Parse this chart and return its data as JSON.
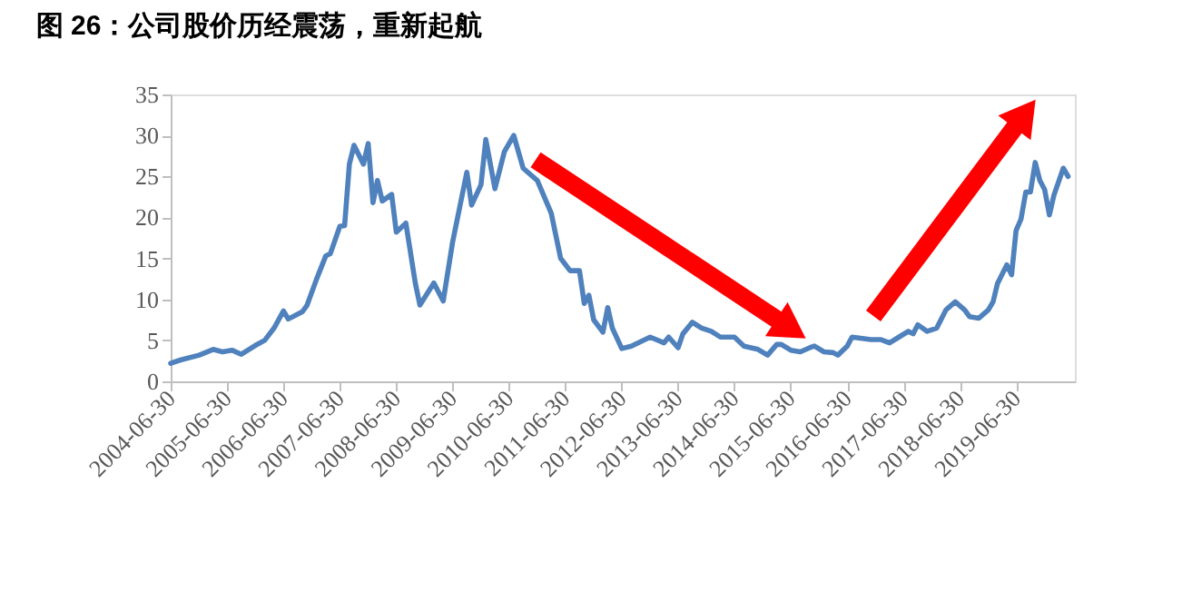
{
  "chart_data": {
    "type": "line",
    "title": "图 26：公司股价历经震荡，重新起航",
    "x": [
      "2004-06-30",
      "2004-09",
      "2005-01",
      "2005-04",
      "2005-06",
      "2005-08",
      "2005-10",
      "2006-01",
      "2006-03",
      "2006-05",
      "2006-07",
      "2006-08",
      "2006-11",
      "2006-12",
      "2007-02",
      "2007-04",
      "2007-05",
      "2007-07",
      "2007-08",
      "2007-09",
      "2007-10",
      "2007-12",
      "2008-01",
      "2008-02",
      "2008-03",
      "2008-04",
      "2008-06",
      "2008-07",
      "2008-09",
      "2008-11",
      "2008-12",
      "2009-03",
      "2009-05",
      "2009-07",
      "2009-10",
      "2009-11",
      "2010-01",
      "2010-02",
      "2010-04",
      "2010-06",
      "2010-08",
      "2010-10",
      "2011-01",
      "2011-04",
      "2011-06",
      "2011-08",
      "2011-10",
      "2011-11",
      "2011-12",
      "2012-01",
      "2012-03",
      "2012-04",
      "2012-05",
      "2012-07",
      "2012-09",
      "2013-01",
      "2013-04",
      "2013-05",
      "2013-07",
      "2013-08",
      "2013-10",
      "2013-12",
      "2014-02",
      "2014-04",
      "2014-07",
      "2014-09",
      "2014-12",
      "2015-02",
      "2015-04",
      "2015-05",
      "2015-07",
      "2015-09",
      "2015-11",
      "2015-12",
      "2016-02",
      "2016-04",
      "2016-05",
      "2016-07",
      "2016-08",
      "2016-12",
      "2017-02",
      "2017-04",
      "2017-06",
      "2017-08",
      "2017-09",
      "2017-10",
      "2017-12",
      "2018-02",
      "2018-04",
      "2018-06",
      "2018-08",
      "2018-09",
      "2018-11",
      "2019-01",
      "2019-02",
      "2019-03",
      "2019-05",
      "2019-06-01",
      "2019-06-30",
      "2019-08",
      "2019-09",
      "2019-10",
      "2019-11",
      "2019-12",
      "2020-01",
      "2020-02",
      "2020-03",
      "2020-05",
      "2020-06"
    ],
    "series": [
      {
        "color": "#4f81bd",
        "values": [
          2.2,
          2.6,
          3.2,
          3.9,
          3.6,
          3.8,
          3.3,
          4.4,
          5.0,
          6.5,
          8.6,
          7.6,
          8.5,
          9.3,
          12.5,
          15.3,
          15.6,
          18.9,
          19.0,
          26.5,
          28.8,
          26.5,
          29.0,
          21.8,
          24.5,
          22.0,
          22.8,
          18.2,
          19.3,
          12.0,
          9.3,
          12.0,
          9.8,
          17.0,
          25.5,
          21.5,
          24.0,
          29.5,
          23.5,
          28.0,
          30.0,
          26.0,
          24.5,
          20.5,
          15.0,
          13.5,
          13.5,
          9.5,
          10.5,
          7.5,
          6.0,
          9.0,
          6.5,
          4.0,
          4.3,
          5.4,
          4.7,
          5.4,
          4.1,
          5.8,
          7.2,
          6.5,
          6.1,
          5.4,
          5.4,
          4.3,
          3.9,
          3.2,
          4.5,
          4.5,
          3.8,
          3.6,
          4.1,
          4.3,
          3.6,
          3.5,
          3.2,
          4.3,
          5.4,
          5.1,
          5.1,
          4.7,
          5.4,
          6.1,
          5.8,
          6.9,
          6.1,
          6.5,
          8.7,
          9.7,
          8.7,
          7.9,
          7.7,
          8.7,
          9.7,
          11.9,
          14.2,
          13.0,
          18.4,
          19.8,
          23.1,
          23.1,
          26.7,
          24.5,
          23.4,
          20.3,
          22.7,
          26.0,
          25.0
        ]
      }
    ],
    "xlim": [
      "2004-06-30",
      "2020-07-15"
    ],
    "xticks": [
      "2004-06-30",
      "2005-06-30",
      "2006-06-30",
      "2007-06-30",
      "2008-06-30",
      "2009-06-30",
      "2010-06-30",
      "2011-06-30",
      "2012-06-30",
      "2013-06-30",
      "2014-06-30",
      "2015-06-30",
      "2016-06-30",
      "2017-06-30",
      "2018-06-30",
      "2019-06-30"
    ],
    "ylim": [
      0,
      35
    ],
    "yticks": [
      0,
      5,
      10,
      15,
      20,
      25,
      30,
      35
    ],
    "grid": false,
    "marker": "none",
    "line_style": "solid"
  }
}
